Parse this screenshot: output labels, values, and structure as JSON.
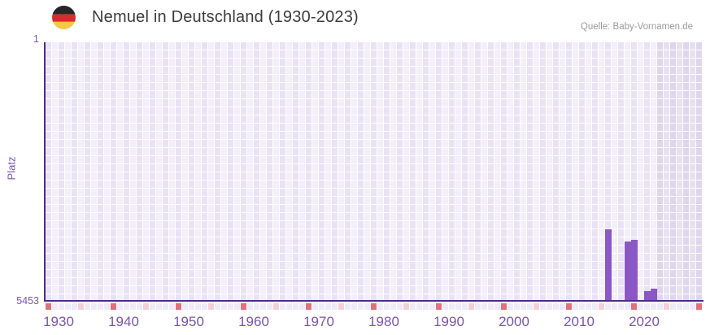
{
  "header": {
    "flag_icon": "germany-flag-circle",
    "title": "Nemuel in Deutschland (1930-2023)",
    "source": "Quelle: Baby-Vornamen.de"
  },
  "chart_data": {
    "type": "bar",
    "title": "Nemuel in Deutschland (1930-2023)",
    "ylabel": "Platz",
    "xlabel": "",
    "legend": "none",
    "grid": "checkerboard of light purple year/rank cells, darker band after last data year",
    "y_axis": {
      "top_tick": "1",
      "bottom_tick": "5453",
      "min": 1,
      "max": 5453,
      "inverted": true
    },
    "x_axis": {
      "start_year": 1930,
      "end_year": 2023,
      "tick_labels": [
        "1930",
        "1940",
        "1950",
        "1960",
        "1970",
        "1980",
        "1990",
        "2000",
        "2010",
        "2020"
      ]
    },
    "series": [
      {
        "name": "Platz",
        "points": [
          {
            "year": 2016,
            "rank": 3950
          },
          {
            "year": 2019,
            "rank": 4200
          },
          {
            "year": 2020,
            "rank": 4160
          },
          {
            "year": 2022,
            "rank": 5245
          },
          {
            "year": 2023,
            "rank": 5190
          }
        ]
      }
    ],
    "colors": {
      "bar": "#8a57c4",
      "axis": "#4c2b8c",
      "tick_text": "#7a55ad",
      "title_text": "#3c3c3c",
      "source_text": "#9b9b9b",
      "grid_dark": "#e9e2f4",
      "grid_light": "#f2eefa",
      "grid_dark_band": "#ded6ec",
      "grid_light_band": "#e7e0f2",
      "marker_decade": "#e36f7b",
      "marker_five": "#f4d0d6",
      "marker_plain": "#efeaf7"
    }
  }
}
